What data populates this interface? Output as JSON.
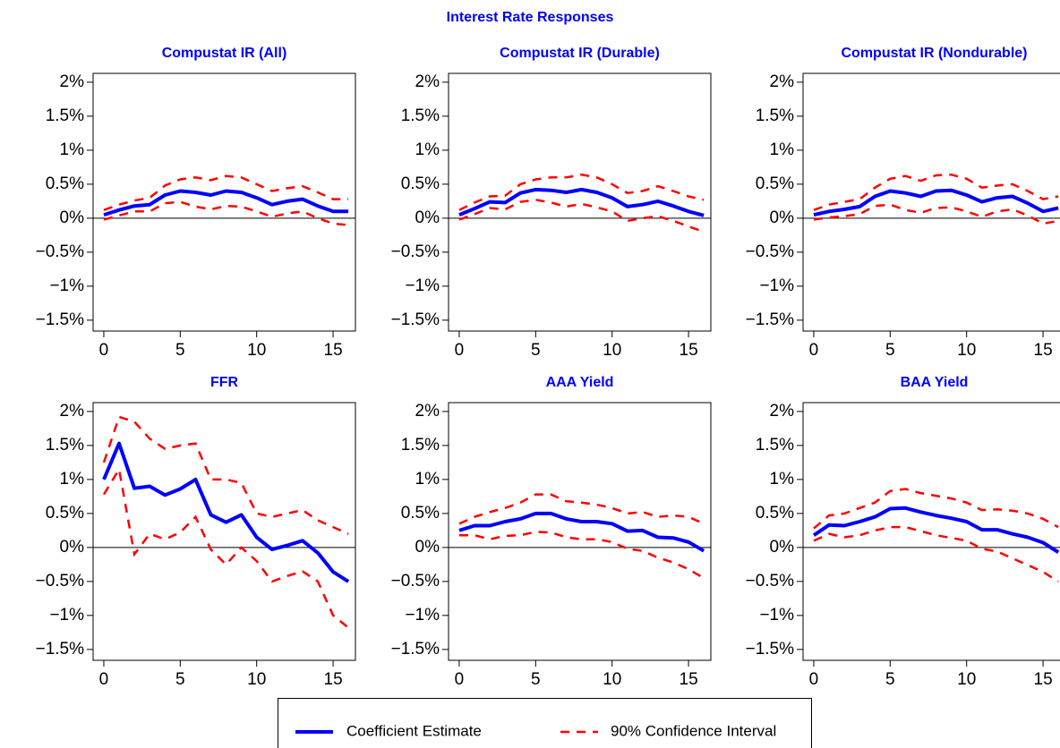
{
  "title": "Interest Rate Responses",
  "chart_data": [
    {
      "type": "line",
      "title": "Compustat IR (All)",
      "x": [
        0,
        1,
        2,
        3,
        4,
        5,
        6,
        7,
        8,
        9,
        10,
        11,
        12,
        13,
        14,
        15,
        16
      ],
      "series": [
        {
          "name": "Coefficient Estimate",
          "color": "#0000ff",
          "values": [
            0.05,
            0.12,
            0.18,
            0.2,
            0.34,
            0.4,
            0.38,
            0.34,
            0.4,
            0.38,
            0.3,
            0.2,
            0.25,
            0.28,
            0.18,
            0.1,
            0.1
          ]
        },
        {
          "name": "90% Confidence Interval",
          "color": "#ff0000",
          "upper": [
            0.12,
            0.2,
            0.26,
            0.3,
            0.48,
            0.57,
            0.6,
            0.56,
            0.62,
            0.6,
            0.5,
            0.4,
            0.44,
            0.47,
            0.38,
            0.28,
            0.28
          ],
          "lower": [
            -0.02,
            0.04,
            0.1,
            0.1,
            0.22,
            0.24,
            0.17,
            0.13,
            0.18,
            0.17,
            0.1,
            0.02,
            0.07,
            0.1,
            0.0,
            -0.08,
            -0.1
          ]
        }
      ],
      "xlim": [
        -0.7,
        16.46
      ],
      "xticks": [
        0,
        5,
        10,
        15
      ],
      "ylim": [
        -1.66,
        2.13
      ],
      "yticks": [
        {
          "value": 2,
          "label": "2%"
        },
        {
          "value": 1.5,
          "label": "1.5%"
        },
        {
          "value": 1,
          "label": "1%"
        },
        {
          "value": 0.5,
          "label": "0.5%"
        },
        {
          "value": 0,
          "label": "0%"
        },
        {
          "value": -0.5,
          "label": "−0.5%"
        },
        {
          "value": -1,
          "label": "−1%"
        },
        {
          "value": -1.5,
          "label": "−1.5%"
        }
      ]
    },
    {
      "type": "line",
      "title": "Compustat IR (Durable)",
      "x": [
        0,
        1,
        2,
        3,
        4,
        5,
        6,
        7,
        8,
        9,
        10,
        11,
        12,
        13,
        14,
        15,
        16
      ],
      "series": [
        {
          "name": "Coefficient Estimate",
          "color": "#0000ff",
          "values": [
            0.05,
            0.14,
            0.24,
            0.23,
            0.37,
            0.42,
            0.41,
            0.38,
            0.42,
            0.38,
            0.3,
            0.17,
            0.2,
            0.25,
            0.18,
            0.1,
            0.04
          ]
        },
        {
          "name": "90% Confidence Interval",
          "color": "#ff0000",
          "upper": [
            0.12,
            0.23,
            0.32,
            0.33,
            0.5,
            0.57,
            0.6,
            0.6,
            0.64,
            0.6,
            0.5,
            0.37,
            0.4,
            0.47,
            0.4,
            0.32,
            0.27
          ],
          "lower": [
            -0.02,
            0.06,
            0.15,
            0.13,
            0.24,
            0.27,
            0.23,
            0.17,
            0.21,
            0.16,
            0.1,
            -0.04,
            0.0,
            0.03,
            -0.04,
            -0.12,
            -0.2
          ]
        }
      ],
      "xlim": [
        -0.7,
        16.46
      ],
      "xticks": [
        0,
        5,
        10,
        15
      ],
      "ylim": [
        -1.66,
        2.13
      ],
      "yticks": [
        {
          "value": 2,
          "label": "2%"
        },
        {
          "value": 1.5,
          "label": "1.5%"
        },
        {
          "value": 1,
          "label": "1%"
        },
        {
          "value": 0.5,
          "label": "0.5%"
        },
        {
          "value": 0,
          "label": "0%"
        },
        {
          "value": -0.5,
          "label": "−0.5%"
        },
        {
          "value": -1,
          "label": "−1%"
        },
        {
          "value": -1.5,
          "label": "−1.5%"
        }
      ]
    },
    {
      "type": "line",
      "title": "Compustat IR (Nondurable)",
      "x": [
        0,
        1,
        2,
        3,
        4,
        5,
        6,
        7,
        8,
        9,
        10,
        11,
        12,
        13,
        14,
        15,
        16
      ],
      "series": [
        {
          "name": "Coefficient Estimate",
          "color": "#0000ff",
          "values": [
            0.05,
            0.1,
            0.13,
            0.17,
            0.32,
            0.4,
            0.37,
            0.32,
            0.4,
            0.41,
            0.34,
            0.24,
            0.3,
            0.32,
            0.22,
            0.1,
            0.15
          ]
        },
        {
          "name": "90% Confidence Interval",
          "color": "#ff0000",
          "upper": [
            0.12,
            0.2,
            0.24,
            0.28,
            0.45,
            0.58,
            0.62,
            0.55,
            0.63,
            0.64,
            0.58,
            0.45,
            0.48,
            0.5,
            0.4,
            0.28,
            0.32
          ],
          "lower": [
            -0.02,
            0.01,
            0.03,
            0.06,
            0.18,
            0.2,
            0.12,
            0.08,
            0.15,
            0.16,
            0.1,
            0.02,
            0.1,
            0.13,
            0.04,
            -0.08,
            -0.04
          ]
        }
      ],
      "xlim": [
        -0.7,
        16.46
      ],
      "xticks": [
        0,
        5,
        10,
        15
      ],
      "ylim": [
        -1.66,
        2.13
      ],
      "yticks": [
        {
          "value": 2,
          "label": "2%"
        },
        {
          "value": 1.5,
          "label": "1.5%"
        },
        {
          "value": 1,
          "label": "1%"
        },
        {
          "value": 0.5,
          "label": "0.5%"
        },
        {
          "value": 0,
          "label": "0%"
        },
        {
          "value": -0.5,
          "label": "−0.5%"
        },
        {
          "value": -1,
          "label": "−1%"
        },
        {
          "value": -1.5,
          "label": "−1.5%"
        }
      ]
    },
    {
      "type": "line",
      "title": "FFR",
      "x": [
        0,
        1,
        2,
        3,
        4,
        5,
        6,
        7,
        8,
        9,
        10,
        11,
        12,
        13,
        14,
        15,
        16
      ],
      "series": [
        {
          "name": "Coefficient Estimate",
          "color": "#0000ff",
          "values": [
            1.0,
            1.53,
            0.87,
            0.9,
            0.77,
            0.86,
            1.0,
            0.48,
            0.37,
            0.48,
            0.15,
            -0.03,
            0.03,
            0.1,
            -0.08,
            -0.36,
            -0.5
          ]
        },
        {
          "name": "90% Confidence Interval",
          "color": "#ff0000",
          "upper": [
            1.25,
            1.92,
            1.85,
            1.6,
            1.45,
            1.5,
            1.53,
            1.0,
            1.0,
            0.95,
            0.5,
            0.45,
            0.5,
            0.55,
            0.4,
            0.3,
            0.2
          ],
          "lower": [
            0.78,
            1.15,
            -0.1,
            0.2,
            0.12,
            0.22,
            0.45,
            -0.03,
            -0.25,
            0.0,
            -0.2,
            -0.5,
            -0.42,
            -0.35,
            -0.5,
            -1.0,
            -1.18
          ]
        }
      ],
      "xlim": [
        -0.7,
        16.46
      ],
      "xticks": [
        0,
        5,
        10,
        15
      ],
      "ylim": [
        -1.66,
        2.13
      ],
      "yticks": [
        {
          "value": 2,
          "label": "2%"
        },
        {
          "value": 1.5,
          "label": "1.5%"
        },
        {
          "value": 1,
          "label": "1%"
        },
        {
          "value": 0.5,
          "label": "0.5%"
        },
        {
          "value": 0,
          "label": "0%"
        },
        {
          "value": -0.5,
          "label": "−0.5%"
        },
        {
          "value": -1,
          "label": "−1%"
        },
        {
          "value": -1.5,
          "label": "−1.5%"
        }
      ]
    },
    {
      "type": "line",
      "title": "AAA Yield",
      "x": [
        0,
        1,
        2,
        3,
        4,
        5,
        6,
        7,
        8,
        9,
        10,
        11,
        12,
        13,
        14,
        15,
        16
      ],
      "series": [
        {
          "name": "Coefficient Estimate",
          "color": "#0000ff",
          "values": [
            0.25,
            0.32,
            0.32,
            0.38,
            0.42,
            0.5,
            0.5,
            0.42,
            0.38,
            0.38,
            0.35,
            0.24,
            0.25,
            0.15,
            0.14,
            0.08,
            -0.05
          ]
        },
        {
          "name": "90% Confidence Interval",
          "color": "#ff0000",
          "upper": [
            0.35,
            0.45,
            0.52,
            0.58,
            0.66,
            0.78,
            0.78,
            0.68,
            0.66,
            0.63,
            0.58,
            0.5,
            0.52,
            0.45,
            0.47,
            0.45,
            0.35
          ],
          "lower": [
            0.18,
            0.18,
            0.12,
            0.17,
            0.18,
            0.23,
            0.22,
            0.15,
            0.12,
            0.12,
            0.08,
            -0.02,
            -0.05,
            -0.15,
            -0.22,
            -0.32,
            -0.45
          ]
        }
      ],
      "xlim": [
        -0.7,
        16.46
      ],
      "xticks": [
        0,
        5,
        10,
        15
      ],
      "ylim": [
        -1.66,
        2.13
      ],
      "yticks": [
        {
          "value": 2,
          "label": "2%"
        },
        {
          "value": 1.5,
          "label": "1.5%"
        },
        {
          "value": 1,
          "label": "1%"
        },
        {
          "value": 0.5,
          "label": "0.5%"
        },
        {
          "value": 0,
          "label": "0%"
        },
        {
          "value": -0.5,
          "label": "−0.5%"
        },
        {
          "value": -1,
          "label": "−1%"
        },
        {
          "value": -1.5,
          "label": "−1.5%"
        }
      ]
    },
    {
      "type": "line",
      "title": "BAA Yield",
      "x": [
        0,
        1,
        2,
        3,
        4,
        5,
        6,
        7,
        8,
        9,
        10,
        11,
        12,
        13,
        14,
        15,
        16
      ],
      "series": [
        {
          "name": "Coefficient Estimate",
          "color": "#0000ff",
          "values": [
            0.18,
            0.33,
            0.32,
            0.38,
            0.45,
            0.57,
            0.58,
            0.52,
            0.47,
            0.43,
            0.38,
            0.26,
            0.26,
            0.2,
            0.15,
            0.07,
            -0.07
          ]
        },
        {
          "name": "90% Confidence Interval",
          "color": "#ff0000",
          "upper": [
            0.28,
            0.47,
            0.5,
            0.58,
            0.66,
            0.83,
            0.86,
            0.8,
            0.76,
            0.72,
            0.66,
            0.55,
            0.56,
            0.54,
            0.5,
            0.42,
            0.3
          ],
          "lower": [
            0.1,
            0.2,
            0.15,
            0.18,
            0.25,
            0.3,
            0.3,
            0.24,
            0.18,
            0.14,
            0.1,
            -0.02,
            -0.06,
            -0.16,
            -0.26,
            -0.36,
            -0.5
          ]
        }
      ],
      "xlim": [
        -0.7,
        16.46
      ],
      "xticks": [
        0,
        5,
        10,
        15
      ],
      "ylim": [
        -1.66,
        2.13
      ],
      "yticks": [
        {
          "value": 2,
          "label": "2%"
        },
        {
          "value": 1.5,
          "label": "1.5%"
        },
        {
          "value": 1,
          "label": "1%"
        },
        {
          "value": 0.5,
          "label": "0.5%"
        },
        {
          "value": 0,
          "label": "0%"
        },
        {
          "value": -0.5,
          "label": "−0.5%"
        },
        {
          "value": -1,
          "label": "−1%"
        },
        {
          "value": -1.5,
          "label": "−1.5%"
        }
      ]
    }
  ]
}
